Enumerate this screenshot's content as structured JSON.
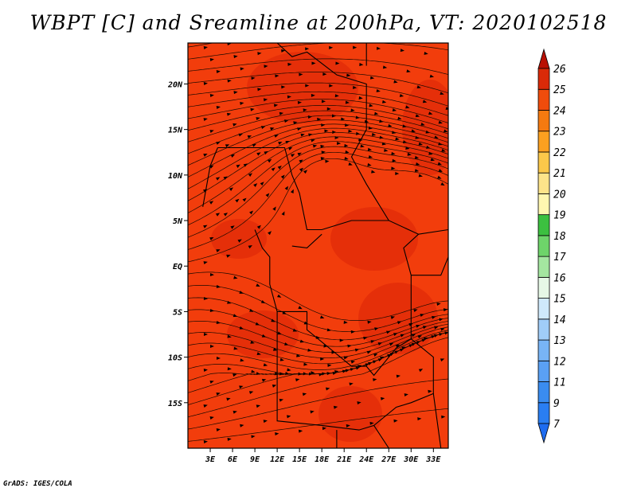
{
  "title": "WBPT [C] and Sreamline at 200hPa, VT: 2020102518",
  "footer": "GrADS: IGES/COLA",
  "map": {
    "lon_range": [
      0,
      35
    ],
    "lat_range": [
      -20,
      24.5
    ],
    "lon_ticks": [
      {
        "value": 3,
        "label": "3E"
      },
      {
        "value": 6,
        "label": "6E"
      },
      {
        "value": 9,
        "label": "9E"
      },
      {
        "value": 12,
        "label": "12E"
      },
      {
        "value": 15,
        "label": "15E"
      },
      {
        "value": 18,
        "label": "18E"
      },
      {
        "value": 21,
        "label": "21E"
      },
      {
        "value": 24,
        "label": "24E"
      },
      {
        "value": 27,
        "label": "27E"
      },
      {
        "value": 30,
        "label": "30E"
      },
      {
        "value": 33,
        "label": "33E"
      }
    ],
    "lat_ticks": [
      {
        "value": 20,
        "label": "20N"
      },
      {
        "value": 15,
        "label": "15N"
      },
      {
        "value": 10,
        "label": "10N"
      },
      {
        "value": 5,
        "label": "5N"
      },
      {
        "value": 0,
        "label": "EQ"
      },
      {
        "value": -5,
        "label": "5S"
      },
      {
        "value": -10,
        "label": "10S"
      },
      {
        "value": -15,
        "label": "15S"
      }
    ],
    "field_base_color": "#f23d0c",
    "field_high_color": "#e02a08"
  },
  "colorbar": {
    "levels": [
      "7",
      "9",
      "11",
      "12",
      "13",
      "14",
      "15",
      "16",
      "17",
      "18",
      "19",
      "20",
      "21",
      "22",
      "23",
      "24",
      "25",
      "26"
    ],
    "colors": [
      "#1e6cf0",
      "#2a7ef2",
      "#3a8cf0",
      "#5aa0f4",
      "#78b4f6",
      "#a0cdf8",
      "#cfe9fb",
      "#e6f8e6",
      "#a4e6a0",
      "#6ed46a",
      "#3cc040",
      "#fff7b0",
      "#fde48a",
      "#fbc84a",
      "#fba020",
      "#f57a10",
      "#f04c0c",
      "#da2a08",
      "#b81004"
    ]
  }
}
